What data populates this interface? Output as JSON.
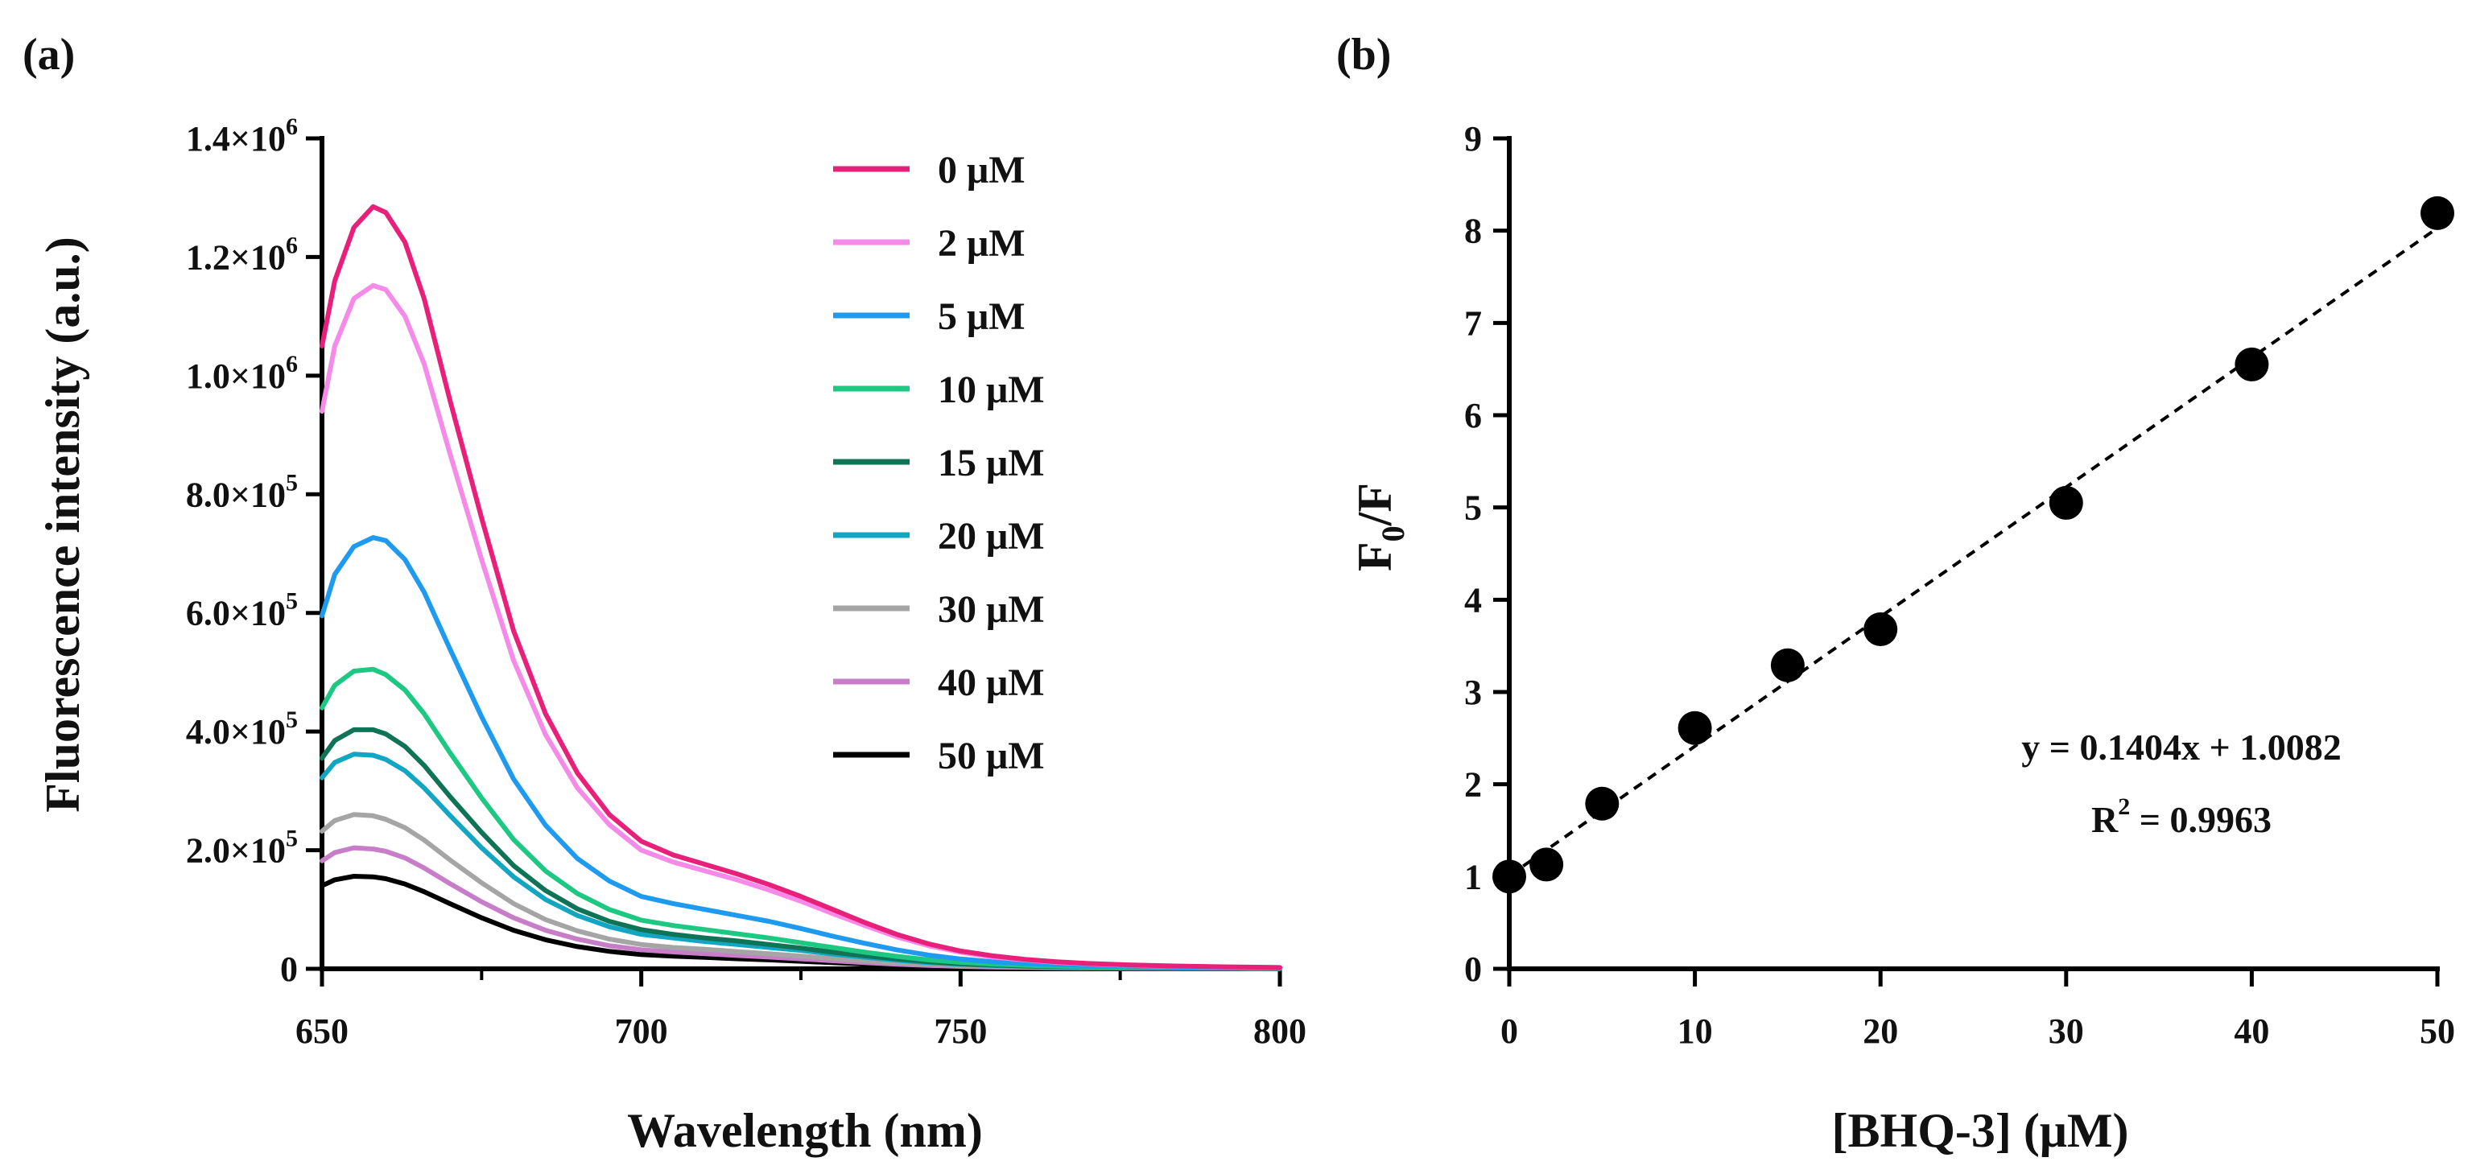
{
  "chart_data": [
    {
      "id": "a",
      "panel_label": "(a)",
      "type": "line",
      "xlabel": "Wavelength (nm)",
      "ylabel": "Fluorescence intensity (a.u.)",
      "xlim": [
        650,
        800
      ],
      "ylim": [
        0,
        1400000
      ],
      "xticks": [
        650,
        700,
        750,
        800
      ],
      "xtick_labels": [
        "650",
        "700",
        "750",
        "800"
      ],
      "yticks": [
        0,
        200000,
        400000,
        600000,
        800000,
        1000000,
        1200000,
        1400000
      ],
      "ytick_labels": [
        {
          "base": "0",
          "exp": ""
        },
        {
          "base": "2.0×10",
          "exp": "5"
        },
        {
          "base": "4.0×10",
          "exp": "5"
        },
        {
          "base": "6.0×10",
          "exp": "5"
        },
        {
          "base": "8.0×10",
          "exp": "5"
        },
        {
          "base": "1.0×10",
          "exp": "6"
        },
        {
          "base": "1.2×10",
          "exp": "6"
        },
        {
          "base": "1.4×10",
          "exp": "6"
        }
      ],
      "x": [
        650,
        652,
        655,
        658,
        660,
        663,
        666,
        670,
        675,
        680,
        685,
        690,
        695,
        700,
        705,
        710,
        715,
        720,
        725,
        730,
        735,
        740,
        745,
        750,
        755,
        760,
        765,
        770,
        775,
        780,
        785,
        790,
        795,
        800
      ],
      "series": [
        {
          "name": "0 μM",
          "color": "#E8207A",
          "values": [
            1050000,
            1160000,
            1250000,
            1285000,
            1275000,
            1225000,
            1130000,
            960000,
            760000,
            570000,
            430000,
            330000,
            260000,
            215000,
            192000,
            176000,
            160000,
            142000,
            122000,
            100000,
            78000,
            58000,
            42000,
            30000,
            22000,
            16000,
            12000,
            9000,
            7000,
            5500,
            4500,
            3500,
            2800,
            2200
          ]
        },
        {
          "name": "2 μM",
          "color": "#F58AE8",
          "values": [
            940000,
            1050000,
            1130000,
            1152000,
            1145000,
            1100000,
            1020000,
            870000,
            690000,
            520000,
            395000,
            305000,
            243000,
            200000,
            180000,
            165000,
            150000,
            133000,
            114000,
            93000,
            73000,
            54000,
            39000,
            28000,
            20000,
            15000,
            11000,
            8500,
            6500,
            5200,
            4200,
            3300,
            2600,
            2000
          ]
        },
        {
          "name": "5 μM",
          "color": "#1E9BF0",
          "values": [
            595000,
            665000,
            712000,
            727000,
            722000,
            690000,
            635000,
            540000,
            425000,
            320000,
            242000,
            186000,
            148000,
            122000,
            110000,
            100000,
            90000,
            80000,
            68000,
            55000,
            43000,
            32000,
            23000,
            16500,
            12000,
            9000,
            7000,
            5300,
            4100,
            3300,
            2700,
            2200,
            1800,
            1500
          ]
        },
        {
          "name": "10 μM",
          "color": "#1DC883",
          "values": [
            440000,
            478000,
            502000,
            505000,
            496000,
            470000,
            430000,
            365000,
            288000,
            218000,
            165000,
            127000,
            100000,
            82000,
            73000,
            66000,
            59000,
            52000,
            44000,
            36000,
            28000,
            21000,
            15000,
            11000,
            8000,
            6000,
            4600,
            3500,
            2700,
            2200,
            1800,
            1400,
            1100,
            900
          ]
        },
        {
          "name": "15 μM",
          "color": "#0F7356",
          "values": [
            355000,
            385000,
            403000,
            403000,
            396000,
            375000,
            343000,
            291000,
            230000,
            174000,
            132000,
            101000,
            80000,
            66000,
            58000,
            52000,
            47000,
            41000,
            35000,
            28000,
            22000,
            16500,
            12000,
            8700,
            6400,
            4800,
            3700,
            2800,
            2200,
            1800,
            1400,
            1100,
            900,
            700
          ]
        },
        {
          "name": "20 μM",
          "color": "#13A6C2",
          "values": [
            322000,
            348000,
            362000,
            360000,
            353000,
            334000,
            305000,
            259000,
            204000,
            155000,
            117000,
            90000,
            71000,
            58000,
            52000,
            46000,
            41000,
            36000,
            31000,
            25000,
            19500,
            14500,
            10500,
            7600,
            5600,
            4200,
            3200,
            2500,
            1900,
            1500,
            1200,
            1000,
            800,
            600
          ]
        },
        {
          "name": "30 μM",
          "color": "#A5A5A5",
          "values": [
            232000,
            250000,
            260000,
            258000,
            252000,
            238000,
            217000,
            184000,
            145000,
            110000,
            83000,
            64000,
            50000,
            41000,
            36000,
            33000,
            29000,
            25500,
            21500,
            17500,
            13500,
            10000,
            7300,
            5300,
            3900,
            2900,
            2200,
            1700,
            1300,
            1000,
            850,
            700,
            550,
            450
          ]
        },
        {
          "name": "40 μM",
          "color": "#C77DC8",
          "values": [
            182000,
            196000,
            204000,
            202000,
            198000,
            187000,
            170000,
            144000,
            113000,
            86000,
            65000,
            50000,
            39000,
            32000,
            28500,
            25500,
            22500,
            19800,
            16800,
            13600,
            10500,
            7800,
            5700,
            4100,
            3000,
            2300,
            1700,
            1300,
            1000,
            800,
            650,
            520,
            420,
            350
          ]
        },
        {
          "name": "50 μM",
          "color": "#000000",
          "values": [
            140000,
            150000,
            156000,
            155000,
            152000,
            143000,
            130000,
            110000,
            86000,
            65000,
            49000,
            37500,
            29500,
            24000,
            21500,
            19200,
            17000,
            15000,
            12700,
            10300,
            8000,
            5900,
            4300,
            3100,
            2300,
            1700,
            1300,
            1000,
            780,
            620,
            500,
            400,
            320,
            260
          ]
        }
      ]
    },
    {
      "id": "b",
      "panel_label": "(b)",
      "type": "scatter",
      "xlabel": "[BHQ-3] (μM)",
      "ylabel": {
        "main": "F",
        "sub": "0",
        "rest": "/F"
      },
      "xlim": [
        0,
        50
      ],
      "ylim": [
        0,
        9
      ],
      "xticks": [
        0,
        10,
        20,
        30,
        40,
        50
      ],
      "yticks": [
        0,
        1,
        2,
        3,
        4,
        5,
        6,
        7,
        8,
        9
      ],
      "x": [
        0,
        2,
        5,
        10,
        15,
        20,
        30,
        40,
        50
      ],
      "y": [
        1.0,
        1.13,
        1.79,
        2.61,
        3.29,
        3.68,
        5.05,
        6.55,
        8.19
      ],
      "fit": {
        "slope": 0.1404,
        "intercept": 1.0082,
        "style": "dashed"
      },
      "equation": "y = 0.1404x + 1.0082",
      "r2": {
        "label": "R",
        "sup": "2",
        "rest": " = 0.9963"
      }
    }
  ]
}
